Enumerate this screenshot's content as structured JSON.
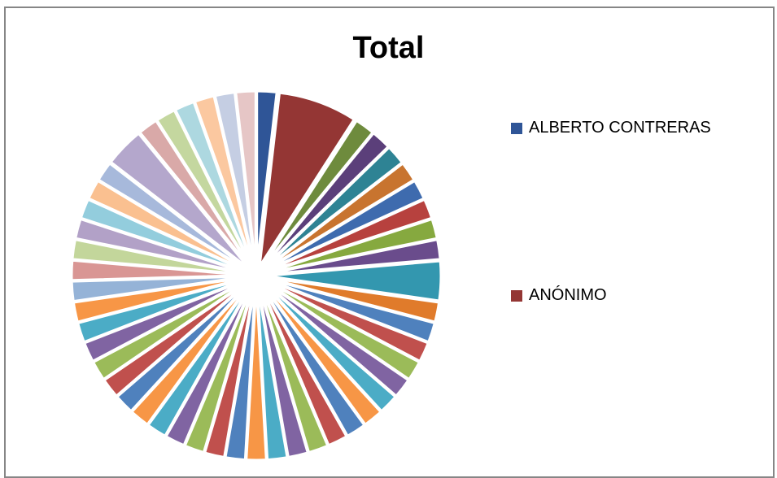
{
  "chart_data": {
    "type": "pie",
    "title": "Total",
    "legend_position": "right",
    "legend": [
      {
        "name": "ALBERTO  CONTRERAS",
        "color": "#2F5597"
      },
      {
        "name": "ANÓNIMO",
        "color": "#943634"
      }
    ],
    "values": [
      2,
      8,
      2,
      2,
      2,
      2,
      2,
      2,
      2,
      2,
      4,
      2,
      2,
      2,
      2,
      2,
      2,
      2,
      2,
      2,
      2,
      2,
      2,
      2,
      2,
      2,
      2,
      2,
      2,
      2,
      2,
      2,
      2,
      2,
      2,
      2,
      2,
      2,
      2,
      2,
      2,
      2,
      2,
      4,
      2,
      2,
      2,
      2,
      2,
      2
    ],
    "colors": [
      "#2F5597",
      "#943634",
      "#6E8B3D",
      "#5B3F7A",
      "#2E8394",
      "#C8742F",
      "#3E6BAE",
      "#B7413E",
      "#86A93F",
      "#6A4C8C",
      "#3397AF",
      "#E07B2B",
      "#4F81BD",
      "#C0504D",
      "#9BBB59",
      "#8064A2",
      "#4BACC6",
      "#F79646",
      "#4F81BD",
      "#C0504D",
      "#9BBB59",
      "#8064A2",
      "#4BACC6",
      "#F79646",
      "#4F81BD",
      "#C0504D",
      "#9BBB59",
      "#8064A2",
      "#4BACC6",
      "#F79646",
      "#4F81BD",
      "#C0504D",
      "#9BBB59",
      "#8064A2",
      "#4BACC6",
      "#F79646",
      "#95B3D7",
      "#D99694",
      "#C3D69B",
      "#B2A1C7",
      "#93CDDD",
      "#FAC090",
      "#A7B9DB",
      "#B4A7CC",
      "#D9A9A8",
      "#C4D79F",
      "#ADD8E0",
      "#FBC8A0",
      "#C5CEE3",
      "#E6C6C6"
    ]
  }
}
